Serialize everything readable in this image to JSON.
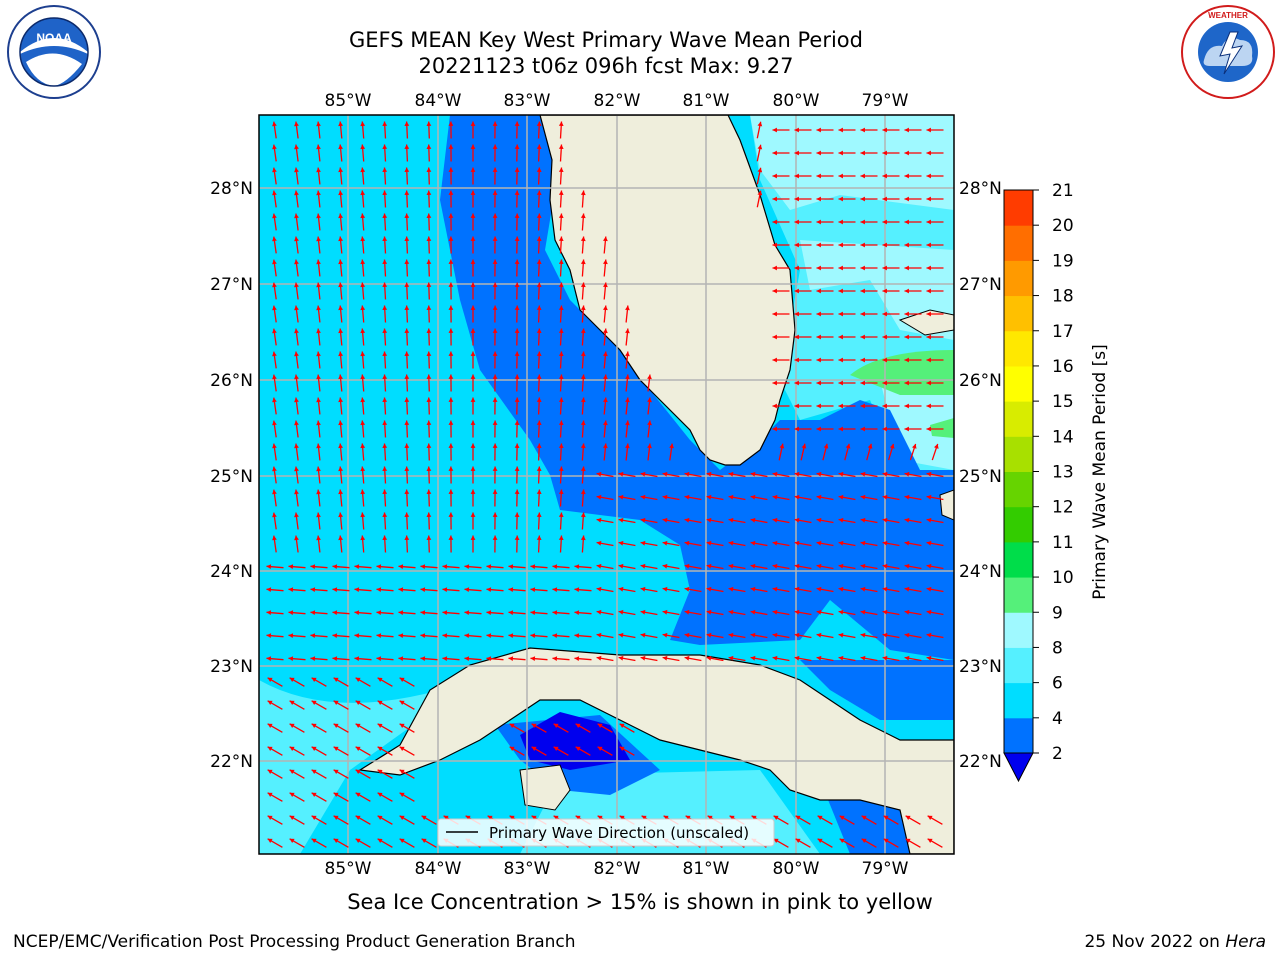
{
  "header": {
    "title_line1": "GEFS MEAN Key West Primary Wave Mean Period",
    "title_line2": "20221123 t06z 096h fcst   Max: 9.27"
  },
  "logos": {
    "left": "noaa-logo",
    "left_text": "NOAA",
    "right": "nws-logo",
    "right_text": "NATIONAL WEATHER SERVICE"
  },
  "map": {
    "lon_labels": [
      "85°W",
      "84°W",
      "83°W",
      "82°W",
      "81°W",
      "80°W",
      "79°W"
    ],
    "lat_labels": [
      "28°N",
      "27°N",
      "26°N",
      "25°N",
      "24°N",
      "23°N",
      "22°N"
    ],
    "legend": "Primary Wave Direction (unscaled)",
    "arrow_color": "#ff0000",
    "land_color": "#efeedc"
  },
  "colorbar": {
    "label": "Primary Wave Mean Period [s]",
    "ticks": [
      "2",
      "4",
      "6",
      "8",
      "9",
      "10",
      "11",
      "12",
      "13",
      "14",
      "15",
      "16",
      "17",
      "18",
      "19",
      "20",
      "21"
    ],
    "colors": [
      "#0072ff",
      "#00ddff",
      "#55f0ff",
      "#9ff9ff",
      "#55f07a",
      "#00dd4a",
      "#33cc00",
      "#66d400",
      "#a8e000",
      "#d8ec00",
      "#ffff00",
      "#ffe800",
      "#ffc000",
      "#ff9a00",
      "#ff6e00",
      "#ff3c00",
      "#ff0000"
    ],
    "under_color": "#0000ee"
  },
  "footer": {
    "caption": "Sea Ice Concentration > 15% is shown in pink to yellow",
    "left": "NCEP/EMC/Verification Post Processing Product Generation Branch",
    "right_date": "25 Nov 2022 on",
    "right_host": "Hera"
  }
}
